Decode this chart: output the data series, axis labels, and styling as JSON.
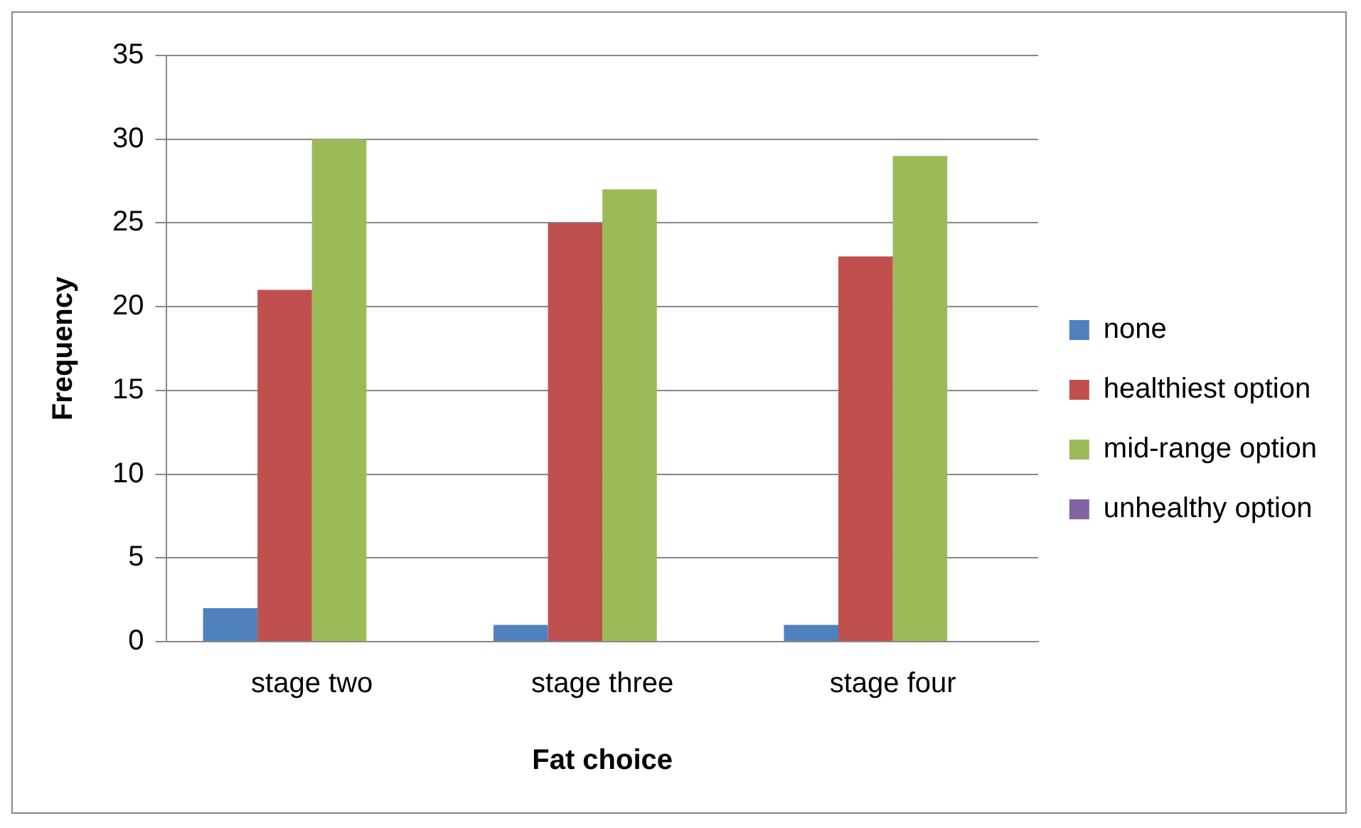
{
  "chart_data": {
    "type": "bar",
    "xlabel": "Fat choice",
    "ylabel": "Frequency",
    "categories": [
      "stage two",
      "stage three",
      "stage four"
    ],
    "series": [
      {
        "name": "none",
        "color": "#4f81bd",
        "values": [
          2,
          1,
          1
        ]
      },
      {
        "name": "healthiest option",
        "color": "#c0504d",
        "values": [
          21,
          25,
          23
        ]
      },
      {
        "name": "mid-range option",
        "color": "#9bbb59",
        "values": [
          30,
          27,
          29
        ]
      },
      {
        "name": "unhealthy option",
        "color": "#8064a2",
        "values": [
          0,
          0,
          0
        ]
      }
    ],
    "ylim": [
      0,
      35
    ],
    "yticks": [
      0,
      5,
      10,
      15,
      20,
      25,
      30,
      35
    ],
    "grid": "y",
    "legend": "right"
  }
}
